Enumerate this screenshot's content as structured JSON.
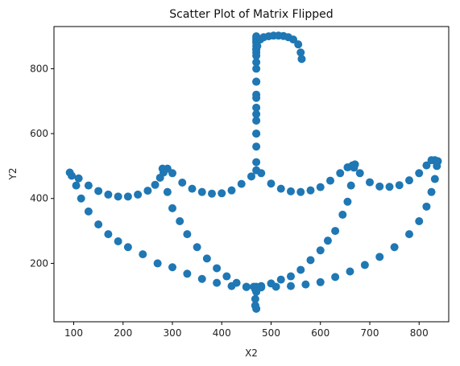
{
  "chart_data": {
    "type": "scatter",
    "title": "Scatter Plot of Matrix Flipped",
    "xlabel": "X2",
    "ylabel": "Y2",
    "xlim": [
      60,
      860
    ],
    "ylim": [
      20,
      930
    ],
    "xticks": [
      100,
      200,
      300,
      400,
      500,
      600,
      700,
      800
    ],
    "yticks": [
      200,
      400,
      600,
      800
    ],
    "marker_color": "#1f77b4",
    "series": [
      {
        "x": [
          92,
          110,
          130,
          150,
          170,
          190,
          210,
          230,
          250,
          265,
          275,
          280,
          290,
          300,
          320,
          340,
          360,
          380,
          400,
          420,
          440,
          460,
          470,
          480,
          500,
          520,
          540,
          560,
          580,
          600,
          620,
          640,
          655,
          665,
          670,
          680,
          700,
          720,
          740,
          760,
          780,
          800,
          815,
          825,
          832,
          838,
          96,
          105,
          115,
          130,
          150,
          170,
          190,
          210,
          240,
          270,
          300,
          330,
          360,
          390,
          420,
          450,
          480,
          510,
          540,
          570,
          600,
          630,
          660,
          690,
          720,
          750,
          780,
          800,
          815,
          825,
          832,
          836,
          282,
          290,
          300,
          315,
          330,
          350,
          370,
          390,
          410,
          430,
          450,
          465,
          668,
          662,
          655,
          645,
          630,
          615,
          600,
          580,
          560,
          540,
          520,
          500,
          480,
          470,
          468,
          468,
          468,
          470,
          470,
          470,
          470,
          470,
          470,
          470,
          470,
          470,
          470,
          470,
          470,
          470,
          470,
          470,
          470,
          470,
          470,
          470,
          470,
          470,
          470,
          470,
          470,
          470,
          472,
          478,
          485,
          495,
          505,
          515,
          525,
          535,
          545,
          555,
          560,
          562
        ],
        "y": [
          480,
          462,
          440,
          423,
          412,
          406,
          406,
          412,
          424,
          442,
          464,
          492,
          492,
          478,
          449,
          430,
          420,
          415,
          416,
          425,
          445,
          468,
          487,
          478,
          446,
          430,
          422,
          420,
          425,
          435,
          455,
          478,
          496,
          502,
          505,
          478,
          450,
          437,
          436,
          441,
          456,
          478,
          502,
          518,
          518,
          515,
          470,
          440,
          400,
          360,
          320,
          290,
          268,
          250,
          228,
          200,
          188,
          168,
          152,
          140,
          130,
          127,
          126,
          128,
          130,
          135,
          142,
          158,
          175,
          195,
          220,
          250,
          290,
          330,
          375,
          420,
          460,
          500,
          480,
          420,
          370,
          330,
          290,
          250,
          215,
          185,
          160,
          140,
          128,
          128,
          495,
          440,
          390,
          350,
          300,
          270,
          240,
          210,
          180,
          160,
          150,
          138,
          130,
          128,
          120,
          90,
          70,
          60,
          112,
          512,
          560,
          600,
          640,
          680,
          720,
          760,
          800,
          840,
          850,
          860,
          870,
          880,
          885,
          890,
          895,
          900,
          600,
          660,
          710,
          760,
          820,
          860,
          870,
          890,
          897,
          900,
          902,
          902,
          901,
          897,
          890,
          875,
          850,
          830
        ]
      }
    ]
  }
}
